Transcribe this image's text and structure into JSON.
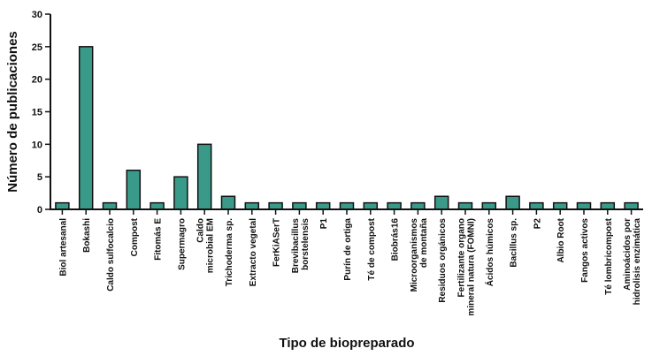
{
  "chart_data": {
    "type": "bar",
    "xlabel": "Tipo de biopreparado",
    "ylabel": "Número de publicaciones",
    "ylim": [
      0,
      30
    ],
    "yticks": [
      0,
      5,
      10,
      15,
      20,
      25,
      30
    ],
    "grid": false,
    "legend": "none",
    "bar_color": "#3a9a8a",
    "bar_edge_color": "#111111",
    "categories": [
      [
        "Biol artesanal"
      ],
      [
        "Bokashi"
      ],
      [
        "Caldo sulfocalcio"
      ],
      [
        "Compost"
      ],
      [
        "Fitomás E"
      ],
      [
        "Supermagro"
      ],
      [
        "Caldo",
        "microbial EM"
      ],
      [
        "Trichoderma sp."
      ],
      [
        "Extracto vegetal"
      ],
      [
        "FerKiASerT"
      ],
      [
        "Brevibacillus",
        "borstelensis"
      ],
      [
        "P1"
      ],
      [
        "Purín de ortiga"
      ],
      [
        "Té de compost"
      ],
      [
        "Biobrás16"
      ],
      [
        "Microorganismos",
        "de montaña"
      ],
      [
        "Residuos orgánicos"
      ],
      [
        "Fertilizante organo",
        "mineral natura (FOMNI)"
      ],
      [
        "Ácidos húmicos"
      ],
      [
        "Bacillus sp."
      ],
      [
        "P2"
      ],
      [
        "Albio Root"
      ],
      [
        "Fangos activos"
      ],
      [
        "Té lombricompost"
      ],
      [
        "Aminoácidos por",
        "hidrolisis enzimática"
      ]
    ],
    "values": [
      1,
      25,
      1,
      6,
      1,
      5,
      10,
      2,
      1,
      1,
      1,
      1,
      1,
      1,
      1,
      1,
      2,
      1,
      1,
      2,
      1,
      1,
      1,
      1,
      1
    ]
  }
}
